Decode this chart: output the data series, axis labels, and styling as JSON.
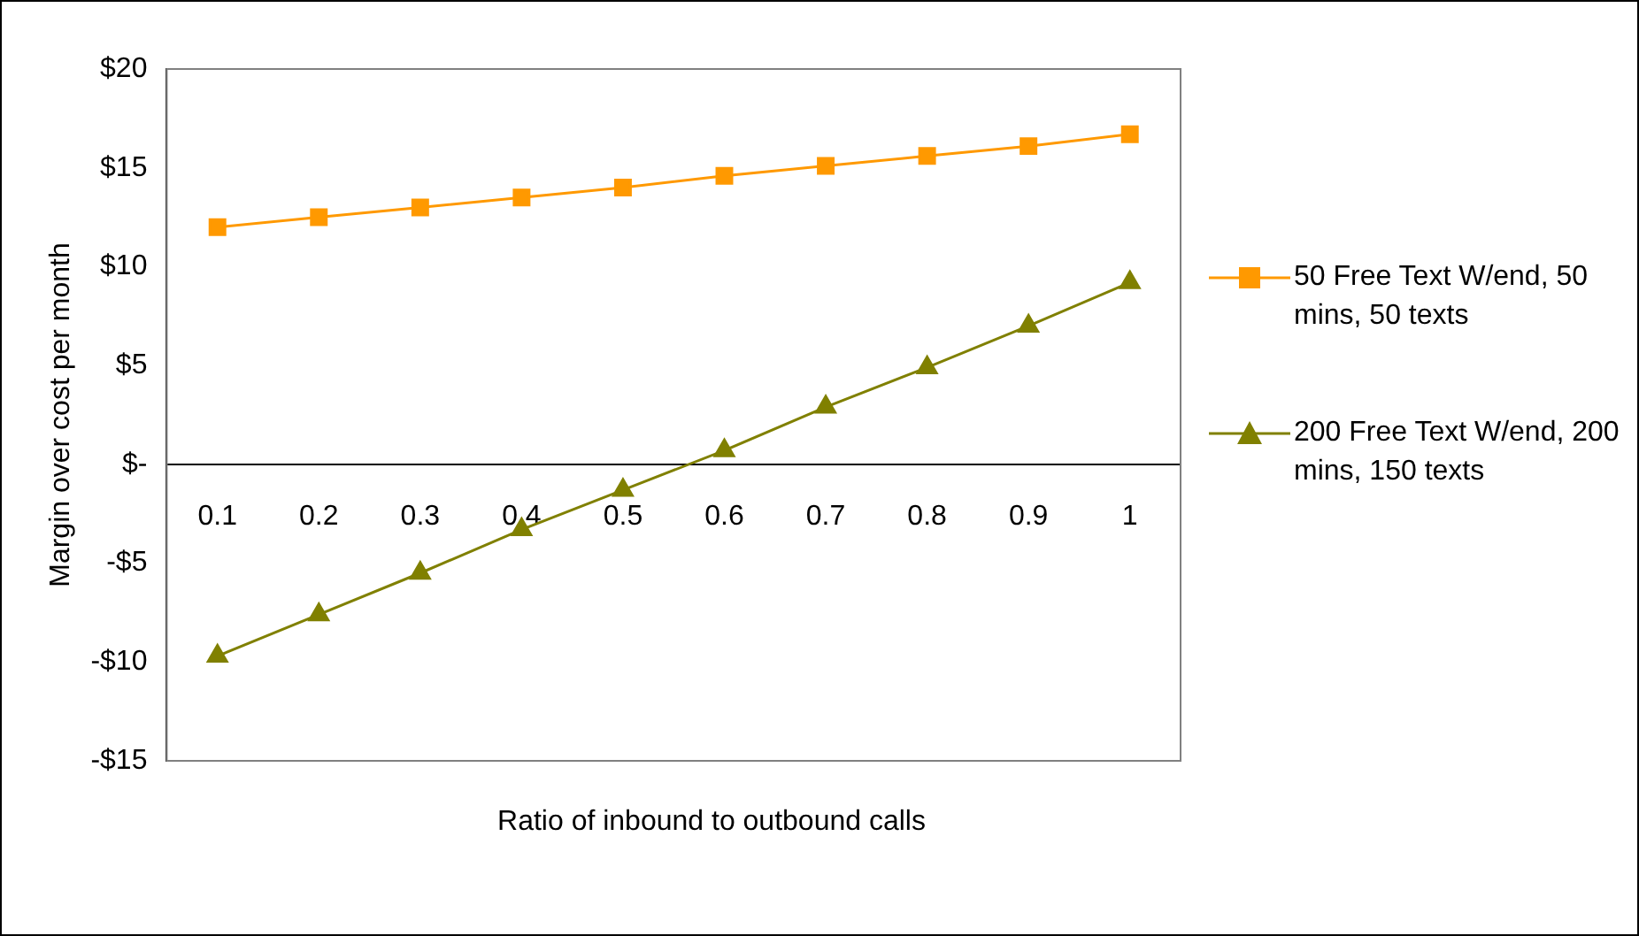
{
  "chart_data": {
    "type": "line",
    "xlabel": "Ratio of inbound to outbound calls",
    "ylabel": "Margin over cost per month",
    "categories": [
      "0.1",
      "0.2",
      "0.3",
      "0.4",
      "0.5",
      "0.6",
      "0.7",
      "0.8",
      "0.9",
      "1"
    ],
    "series": [
      {
        "name": "50 Free Text W/end, 50 mins, 50 texts",
        "color": "#ff9900",
        "marker": "square",
        "values": [
          12.0,
          12.5,
          13.0,
          13.5,
          14.0,
          14.6,
          15.1,
          15.6,
          16.1,
          16.7
        ]
      },
      {
        "name": "200 Free Text W/end, 200 mins, 150 texts",
        "color": "#808000",
        "marker": "triangle",
        "values": [
          -9.7,
          -7.6,
          -5.5,
          -3.3,
          -1.3,
          0.7,
          2.9,
          4.9,
          7.0,
          9.2
        ]
      }
    ],
    "ylim": [
      -15,
      20
    ],
    "yticks": [
      {
        "value": -15,
        "label": "-$15"
      },
      {
        "value": -10,
        "label": "-$10"
      },
      {
        "value": -5,
        "label": "-$5"
      },
      {
        "value": 0,
        "label": "$-"
      },
      {
        "value": 5,
        "label": "$5"
      },
      {
        "value": 10,
        "label": "$10"
      },
      {
        "value": 15,
        "label": "$15"
      },
      {
        "value": 20,
        "label": "$20"
      }
    ],
    "grid": false,
    "legend": "right",
    "line_style": "solid"
  }
}
